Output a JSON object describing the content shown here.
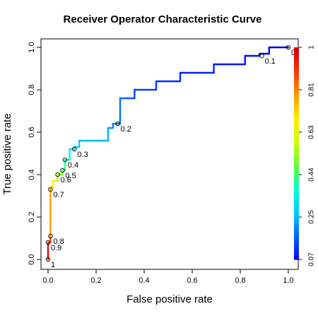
{
  "chart_data": {
    "type": "line",
    "title": "Receiver Operator Characteristic Curve",
    "xlabel": "False positive rate",
    "ylabel": "True positive rate",
    "xlim": [
      0,
      1
    ],
    "ylim": [
      0,
      1
    ],
    "x_ticks": [
      "0.0",
      "0.2",
      "0.4",
      "0.6",
      "0.8",
      "1.0"
    ],
    "y_ticks": [
      "0.0",
      "0.2",
      "0.4",
      "0.6",
      "0.8",
      "1.0"
    ],
    "grid": false,
    "curve": {
      "x": [
        0,
        0,
        0.01,
        0.01,
        0.01,
        0.02,
        0.02,
        0.04,
        0.04,
        0.06,
        0.06,
        0.07,
        0.07,
        0.09,
        0.09,
        0.11,
        0.11,
        0.13,
        0.13,
        0.25,
        0.25,
        0.27,
        0.27,
        0.3,
        0.3,
        0.33,
        0.33,
        0.36,
        0.36,
        0.45,
        0.45,
        0.55,
        0.55,
        0.69,
        0.69,
        0.82,
        0.82,
        0.88,
        0.88,
        0.92,
        0.92,
        1.0
      ],
      "y": [
        0,
        0.08,
        0.08,
        0.11,
        0.34,
        0.34,
        0.37,
        0.37,
        0.4,
        0.4,
        0.42,
        0.42,
        0.47,
        0.47,
        0.52,
        0.52,
        0.53,
        0.53,
        0.56,
        0.56,
        0.62,
        0.62,
        0.64,
        0.64,
        0.76,
        0.76,
        0.76,
        0.76,
        0.8,
        0.8,
        0.84,
        0.84,
        0.88,
        0.88,
        0.92,
        0.92,
        0.96,
        0.96,
        0.97,
        0.97,
        1.0,
        1.0
      ],
      "cutoff": [
        1.0,
        0.95,
        0.9,
        0.85,
        0.72,
        0.7,
        0.63,
        0.6,
        0.55,
        0.52,
        0.47,
        0.45,
        0.4,
        0.38,
        0.33,
        0.32,
        0.3,
        0.29,
        0.27,
        0.25,
        0.23,
        0.22,
        0.2,
        0.19,
        0.18,
        0.17,
        0.16,
        0.15,
        0.14,
        0.13,
        0.12,
        0.11,
        0.105,
        0.1,
        0.095,
        0.09,
        0.085,
        0.08,
        0.075,
        0.07,
        0.07,
        0.07
      ]
    },
    "cutoff_points": [
      {
        "label": "1",
        "x": 0.0,
        "y": 0.0
      },
      {
        "label": "0.9",
        "x": 0.0,
        "y": 0.08
      },
      {
        "label": "0.8",
        "x": 0.01,
        "y": 0.11
      },
      {
        "label": "0.7",
        "x": 0.01,
        "y": 0.33
      },
      {
        "label": "0.6",
        "x": 0.04,
        "y": 0.4
      },
      {
        "label": "0.5",
        "x": 0.06,
        "y": 0.42
      },
      {
        "label": "0.4",
        "x": 0.07,
        "y": 0.47
      },
      {
        "label": "0.3",
        "x": 0.11,
        "y": 0.52
      },
      {
        "label": "0.2",
        "x": 0.29,
        "y": 0.64
      },
      {
        "label": "0.1",
        "x": 0.89,
        "y": 0.96
      },
      {
        "label": "0",
        "x": 1.0,
        "y": 1.0
      }
    ],
    "colorbar": {
      "ticks": [
        "0.07",
        "0.25",
        "0.44",
        "0.63",
        "0.81",
        "1"
      ],
      "min": 0.07,
      "max": 1.0,
      "gradient": [
        "#0000ff",
        "#0066ff",
        "#00ccff",
        "#00ffcc",
        "#66ff33",
        "#ccff00",
        "#ffee00",
        "#ff9900",
        "#ff3300",
        "#cc0000"
      ]
    }
  }
}
